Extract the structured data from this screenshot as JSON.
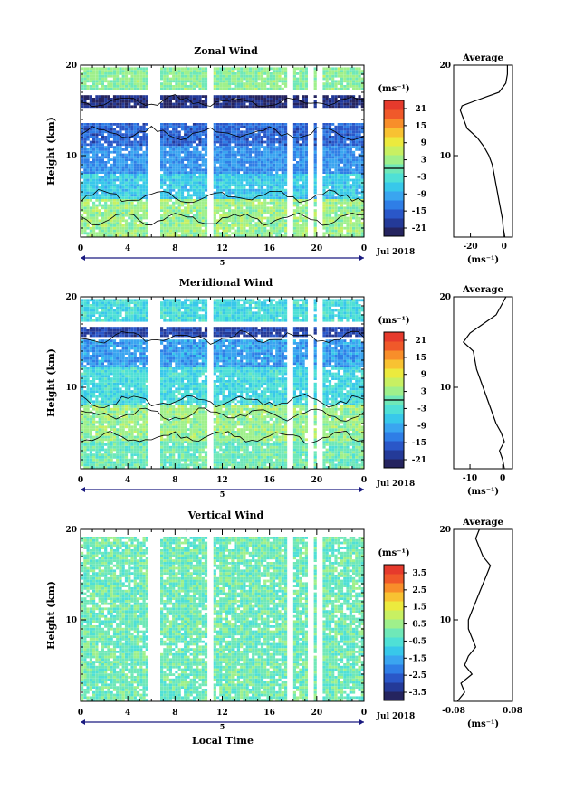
{
  "figure": {
    "xlabel": "Local Time",
    "date_label": "Jul 2018",
    "day_label": "5"
  },
  "chart_data": [
    {
      "type": "heatmap",
      "title": "Zonal Wind",
      "ylabel": "Height (km)",
      "xlim": [
        0,
        24
      ],
      "ylim": [
        1,
        20
      ],
      "xticks": [
        "0",
        "4",
        "8",
        "12",
        "16",
        "20",
        "0"
      ],
      "yticks": [
        "10",
        "20"
      ],
      "colorbar": {
        "unit_label": "(ms⁻¹)",
        "ticks": [
          "21",
          "15",
          "9",
          "3",
          "-3",
          "-9",
          "-15",
          "-21"
        ],
        "range": [
          -24,
          24
        ],
        "zero_line": true
      },
      "gaps_hours": [
        5.8,
        6.3,
        10.9,
        17.6,
        19.3,
        20.1
      ],
      "height_profile_desc": "strong westward (negative) flow near 16 km, weak positive near surface",
      "layers": [
        {
          "h": [
            1,
            5
          ],
          "value": 3
        },
        {
          "h": [
            5,
            8
          ],
          "value": -6
        },
        {
          "h": [
            8,
            11
          ],
          "value": -11
        },
        {
          "h": [
            11,
            13.5
          ],
          "value": -15
        },
        {
          "h": [
            15,
            16.5
          ],
          "value": -21
        },
        {
          "h": [
            17,
            19.5
          ],
          "value": 2
        }
      ],
      "average": {
        "title": "Average",
        "xlabel": "(ms⁻¹)",
        "xticks": [
          "-20",
          "0"
        ],
        "xlim": [
          -30,
          5
        ],
        "height": [
          1,
          2,
          3,
          4,
          5,
          6,
          7,
          8,
          9,
          10,
          11,
          12,
          13,
          14,
          15,
          15.5,
          16,
          17,
          18,
          19,
          20
        ],
        "value": [
          0.5,
          -0.5,
          -1,
          -2,
          -3,
          -4,
          -5,
          -6,
          -7,
          -9,
          -12,
          -16,
          -22,
          -24,
          -26,
          -25,
          -18,
          -3,
          1,
          2,
          2
        ]
      }
    },
    {
      "type": "heatmap",
      "title": "Meridional Wind",
      "ylabel": "Height (km)",
      "xlim": [
        0,
        24
      ],
      "ylim": [
        1,
        20
      ],
      "xticks": [
        "0",
        "4",
        "8",
        "12",
        "16",
        "20",
        "0"
      ],
      "yticks": [
        "10",
        "20"
      ],
      "colorbar": {
        "unit_label": "(ms⁻¹)",
        "ticks": [
          "21",
          "15",
          "9",
          "3",
          "-3",
          "-9",
          "-15",
          "-21"
        ],
        "range": [
          -24,
          24
        ],
        "zero_line": true
      },
      "gaps_hours": [
        5.8,
        6.3,
        10.9,
        17.6,
        19.3,
        20.1
      ],
      "layers": [
        {
          "h": [
            1,
            4
          ],
          "value": 0
        },
        {
          "h": [
            4,
            8
          ],
          "value": 3
        },
        {
          "h": [
            8,
            12
          ],
          "value": -4
        },
        {
          "h": [
            12,
            15
          ],
          "value": -10
        },
        {
          "h": [
            15.5,
            16.5
          ],
          "value": -18
        },
        {
          "h": [
            17,
            19.5
          ],
          "value": -4
        }
      ],
      "average": {
        "title": "Average",
        "xlabel": "(ms⁻¹)",
        "xticks": [
          "-10",
          "0"
        ],
        "xlim": [
          -15,
          3
        ],
        "height": [
          1,
          2,
          3,
          4,
          5,
          6,
          7,
          8,
          9,
          10,
          11,
          12,
          13,
          14,
          15,
          16,
          17,
          18,
          19,
          20
        ],
        "value": [
          0.5,
          0,
          -1,
          0.5,
          -0.5,
          -2,
          -3,
          -4,
          -5,
          -6,
          -7,
          -8,
          -8.5,
          -9,
          -12,
          -10,
          -6,
          -2,
          -0.5,
          1
        ]
      }
    },
    {
      "type": "heatmap",
      "title": "Vertical Wind",
      "ylabel": "Height (km)",
      "xlim": [
        0,
        24
      ],
      "ylim": [
        1,
        20
      ],
      "xticks": [
        "0",
        "4",
        "8",
        "12",
        "16",
        "20",
        "0"
      ],
      "yticks": [
        "10",
        "20"
      ],
      "colorbar": {
        "unit_label": "(ms⁻¹)",
        "ticks": [
          "3.5",
          "2.5",
          "1.5",
          "0.5",
          "-0.5",
          "-1.5",
          "-2.5",
          "-3.5"
        ],
        "range": [
          -4,
          4
        ],
        "zero_line": false
      },
      "gaps_hours": [
        5.8,
        6.3,
        10.9,
        17.6,
        19.3,
        20.1
      ],
      "layers": [
        {
          "h": [
            1,
            19
          ],
          "value": 0
        }
      ],
      "average": {
        "title": "Average",
        "xlabel": "(ms⁻¹)",
        "xticks": [
          "-0.08",
          "0.08"
        ],
        "xlim": [
          -0.08,
          0.08
        ],
        "height": [
          1,
          2,
          3,
          4,
          5,
          6,
          7,
          8,
          9,
          10,
          11,
          12,
          13,
          14,
          15,
          16,
          17,
          18,
          19,
          20
        ],
        "value": [
          -0.07,
          -0.05,
          -0.06,
          -0.03,
          -0.05,
          -0.04,
          -0.02,
          -0.03,
          -0.04,
          -0.04,
          -0.03,
          -0.02,
          -0.01,
          0.0,
          0.01,
          0.02,
          0.0,
          -0.01,
          -0.02,
          -0.01
        ]
      }
    }
  ],
  "colors": {
    "colormap": [
      "#25245f",
      "#243a98",
      "#2a57c8",
      "#2f7ee6",
      "#3aa5f0",
      "#38c8ea",
      "#4fe0d6",
      "#6fe8b8",
      "#9ff08b",
      "#c8f062",
      "#ecea3e",
      "#f8c232",
      "#f88e2a",
      "#f0592a",
      "#e63a2c"
    ]
  }
}
